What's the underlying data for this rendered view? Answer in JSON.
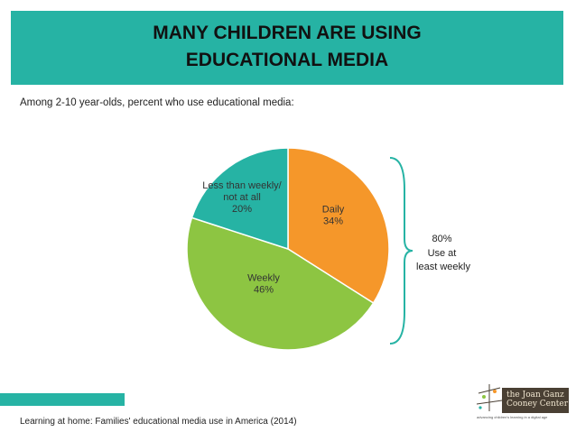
{
  "header": {
    "title_line1": "MANY CHILDREN ARE USING",
    "title_line2": "EDUCATIONAL MEDIA"
  },
  "subtitle": "Among 2-10 year-olds, percent who use educational media:",
  "bracket_note": [
    "80%",
    "Use at",
    "least weekly"
  ],
  "source": "Learning at home: Families' educational media use in America (2014)",
  "logo": {
    "line1": "the Joan Ganz",
    "line2": "Cooney Center",
    "tagline": "advancing children's learning in a digital age"
  },
  "colors": {
    "teal": "#26b3a4",
    "orange": "#f5972a",
    "green": "#8dc542"
  },
  "chart_data": {
    "type": "pie",
    "slices": [
      {
        "label": "Daily",
        "value": 34,
        "value_text": "34%",
        "color": "#f5972a",
        "label_lines": [
          "Daily",
          "34%"
        ]
      },
      {
        "label": "Weekly",
        "value": 46,
        "value_text": "46%",
        "color": "#8dc542",
        "label_lines": [
          "Weekly",
          "46%"
        ]
      },
      {
        "label": "Less than weekly/not at all",
        "value": 20,
        "value_text": "20%",
        "color": "#26b3a4",
        "label_lines": [
          "Less than weekly/",
          "not at all",
          "20%"
        ]
      }
    ]
  }
}
